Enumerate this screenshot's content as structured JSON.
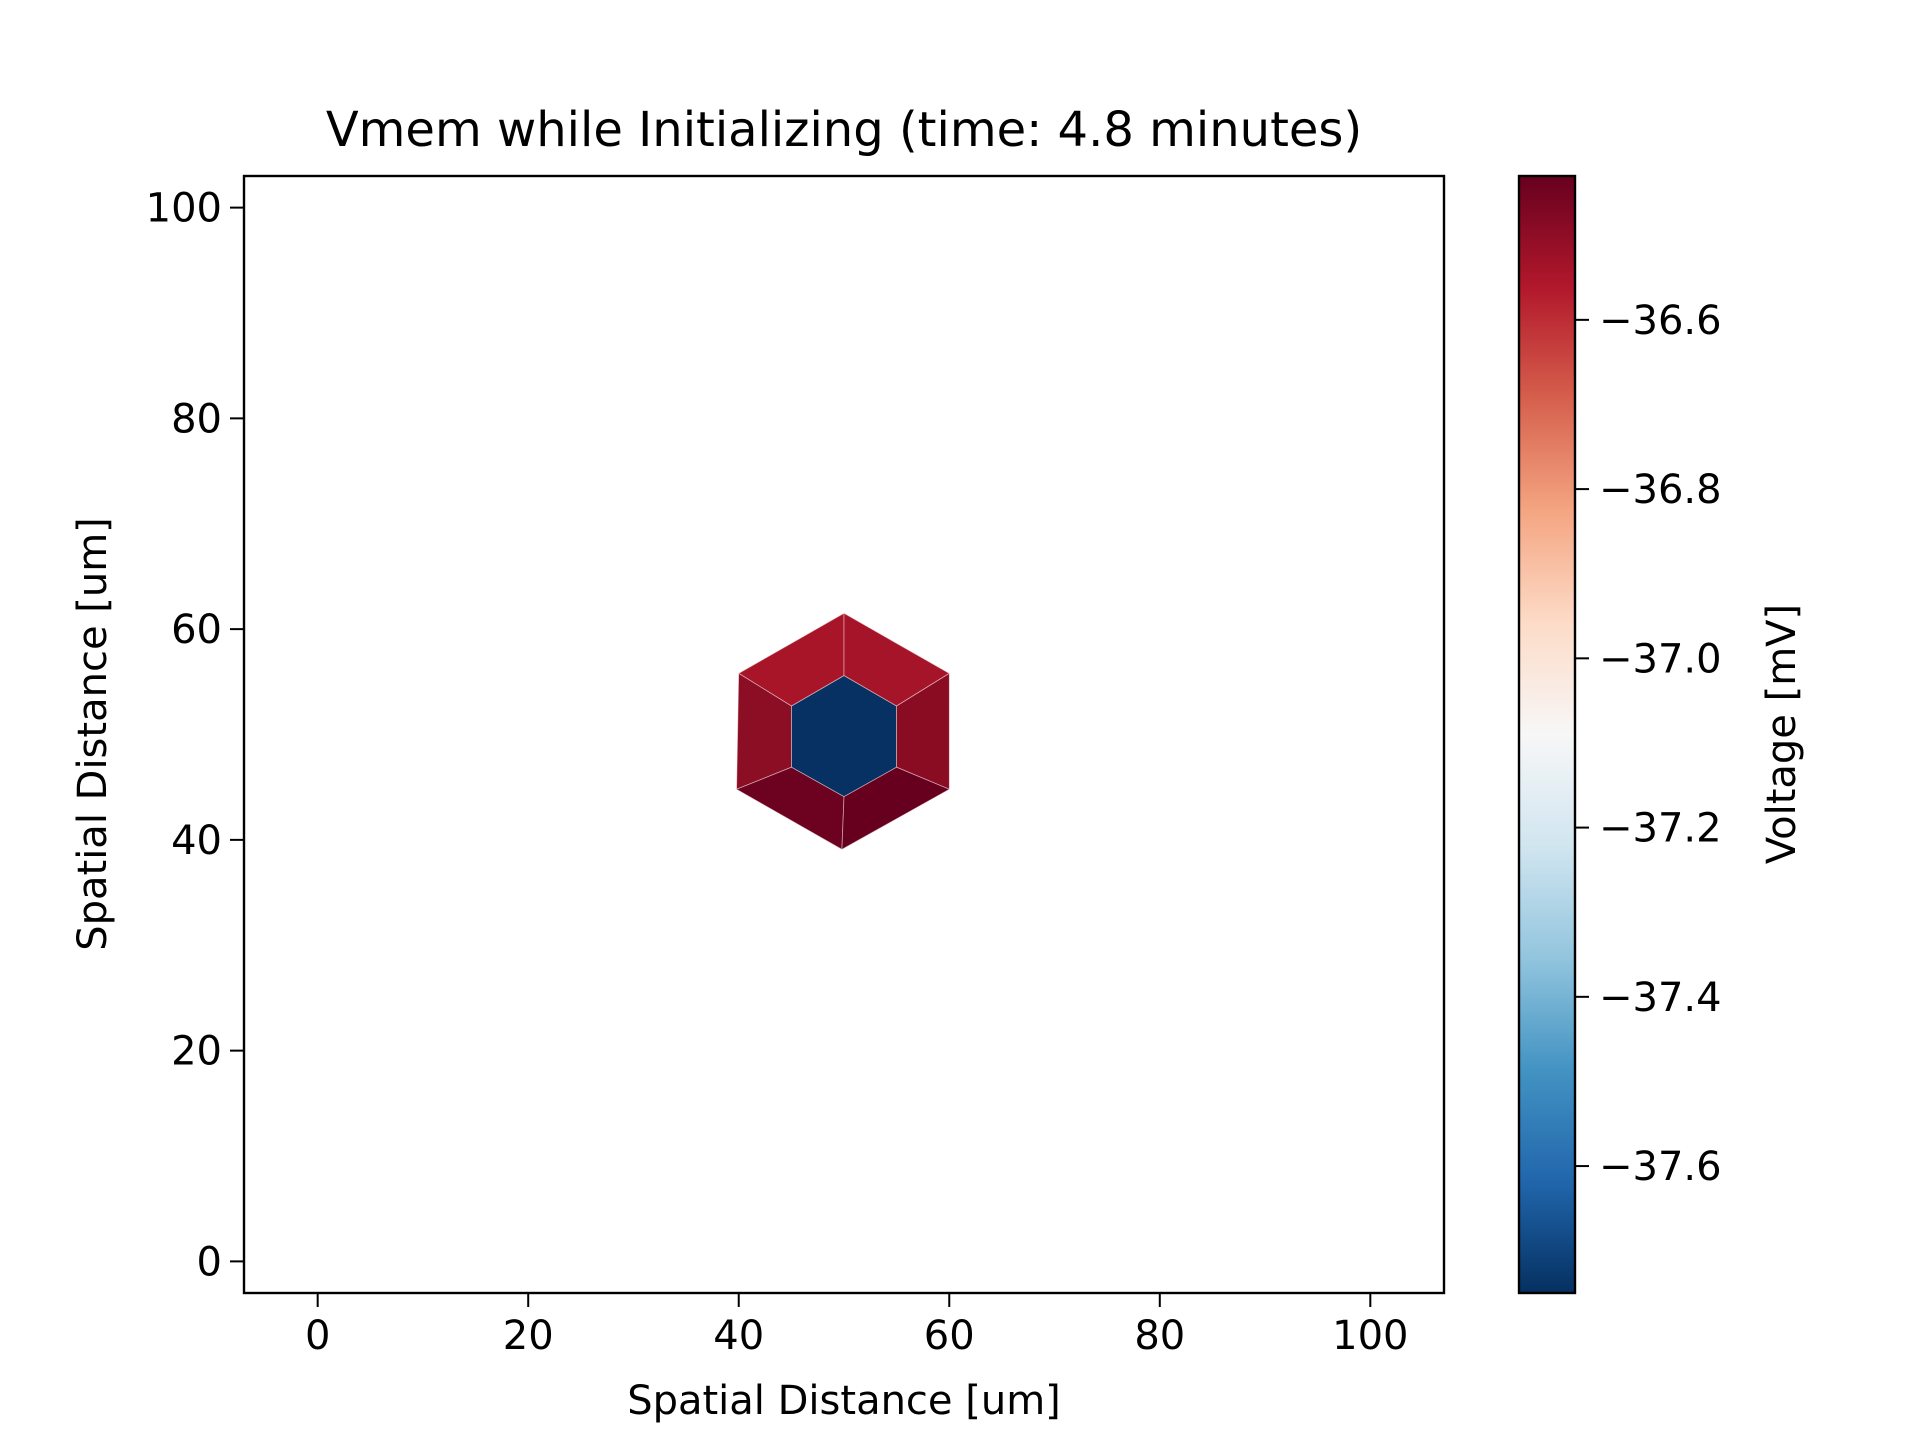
{
  "chart_data": {
    "type": "heatmap",
    "title": "Vmem while Initializing (time: 4.8 minutes)",
    "xlabel": "Spatial Distance [um]",
    "ylabel": "Spatial Distance [um]",
    "xlim": [
      -7,
      107
    ],
    "ylim": [
      -3,
      103
    ],
    "xticks": [
      0,
      20,
      40,
      60,
      80,
      100
    ],
    "yticks": [
      0,
      20,
      40,
      60,
      80,
      100
    ],
    "grid": false,
    "colorbar": {
      "label": "Voltage [mV]",
      "colormap": "RdBu_r",
      "range": [
        -37.75,
        -36.43
      ],
      "ticks": [
        -36.6,
        -36.8,
        -37.0,
        -37.2,
        -37.4,
        -37.6
      ],
      "tick_labels": [
        "−36.6",
        "−36.8",
        "−37.0",
        "−37.2",
        "−37.4",
        "−37.6"
      ]
    },
    "cells": [
      {
        "name": "center",
        "polygon": [
          [
            50,
            55.6
          ],
          [
            55,
            52.7
          ],
          [
            55,
            46.9
          ],
          [
            50,
            44.1
          ],
          [
            45,
            46.9
          ],
          [
            45,
            52.7
          ]
        ],
        "value": -37.74,
        "color": "#073162"
      },
      {
        "name": "top-left",
        "polygon": [
          [
            50,
            61.5
          ],
          [
            50,
            55.6
          ],
          [
            45,
            52.7
          ],
          [
            40,
            55.8
          ]
        ],
        "value": -36.56,
        "color": "#a81529"
      },
      {
        "name": "top-right",
        "polygon": [
          [
            50,
            61.5
          ],
          [
            60,
            55.8
          ],
          [
            55,
            52.7
          ],
          [
            50,
            55.6
          ]
        ],
        "value": -36.55,
        "color": "#a51428"
      },
      {
        "name": "left",
        "polygon": [
          [
            40,
            55.8
          ],
          [
            45,
            52.7
          ],
          [
            45,
            46.9
          ],
          [
            39.8,
            44.8
          ]
        ],
        "value": -36.48,
        "color": "#8b0e24"
      },
      {
        "name": "right",
        "polygon": [
          [
            60,
            55.8
          ],
          [
            60,
            44.8
          ],
          [
            55,
            46.9
          ],
          [
            55,
            52.7
          ]
        ],
        "value": -36.48,
        "color": "#8a0c23"
      },
      {
        "name": "bottom-left",
        "polygon": [
          [
            39.8,
            44.8
          ],
          [
            45,
            46.9
          ],
          [
            50,
            44.1
          ],
          [
            49.8,
            39.1
          ]
        ],
        "value": -36.44,
        "color": "#6c0220"
      },
      {
        "name": "bottom-right",
        "polygon": [
          [
            60,
            44.8
          ],
          [
            49.8,
            39.1
          ],
          [
            50,
            44.1
          ],
          [
            55,
            46.9
          ]
        ],
        "value": -36.43,
        "color": "#67001f"
      }
    ]
  }
}
